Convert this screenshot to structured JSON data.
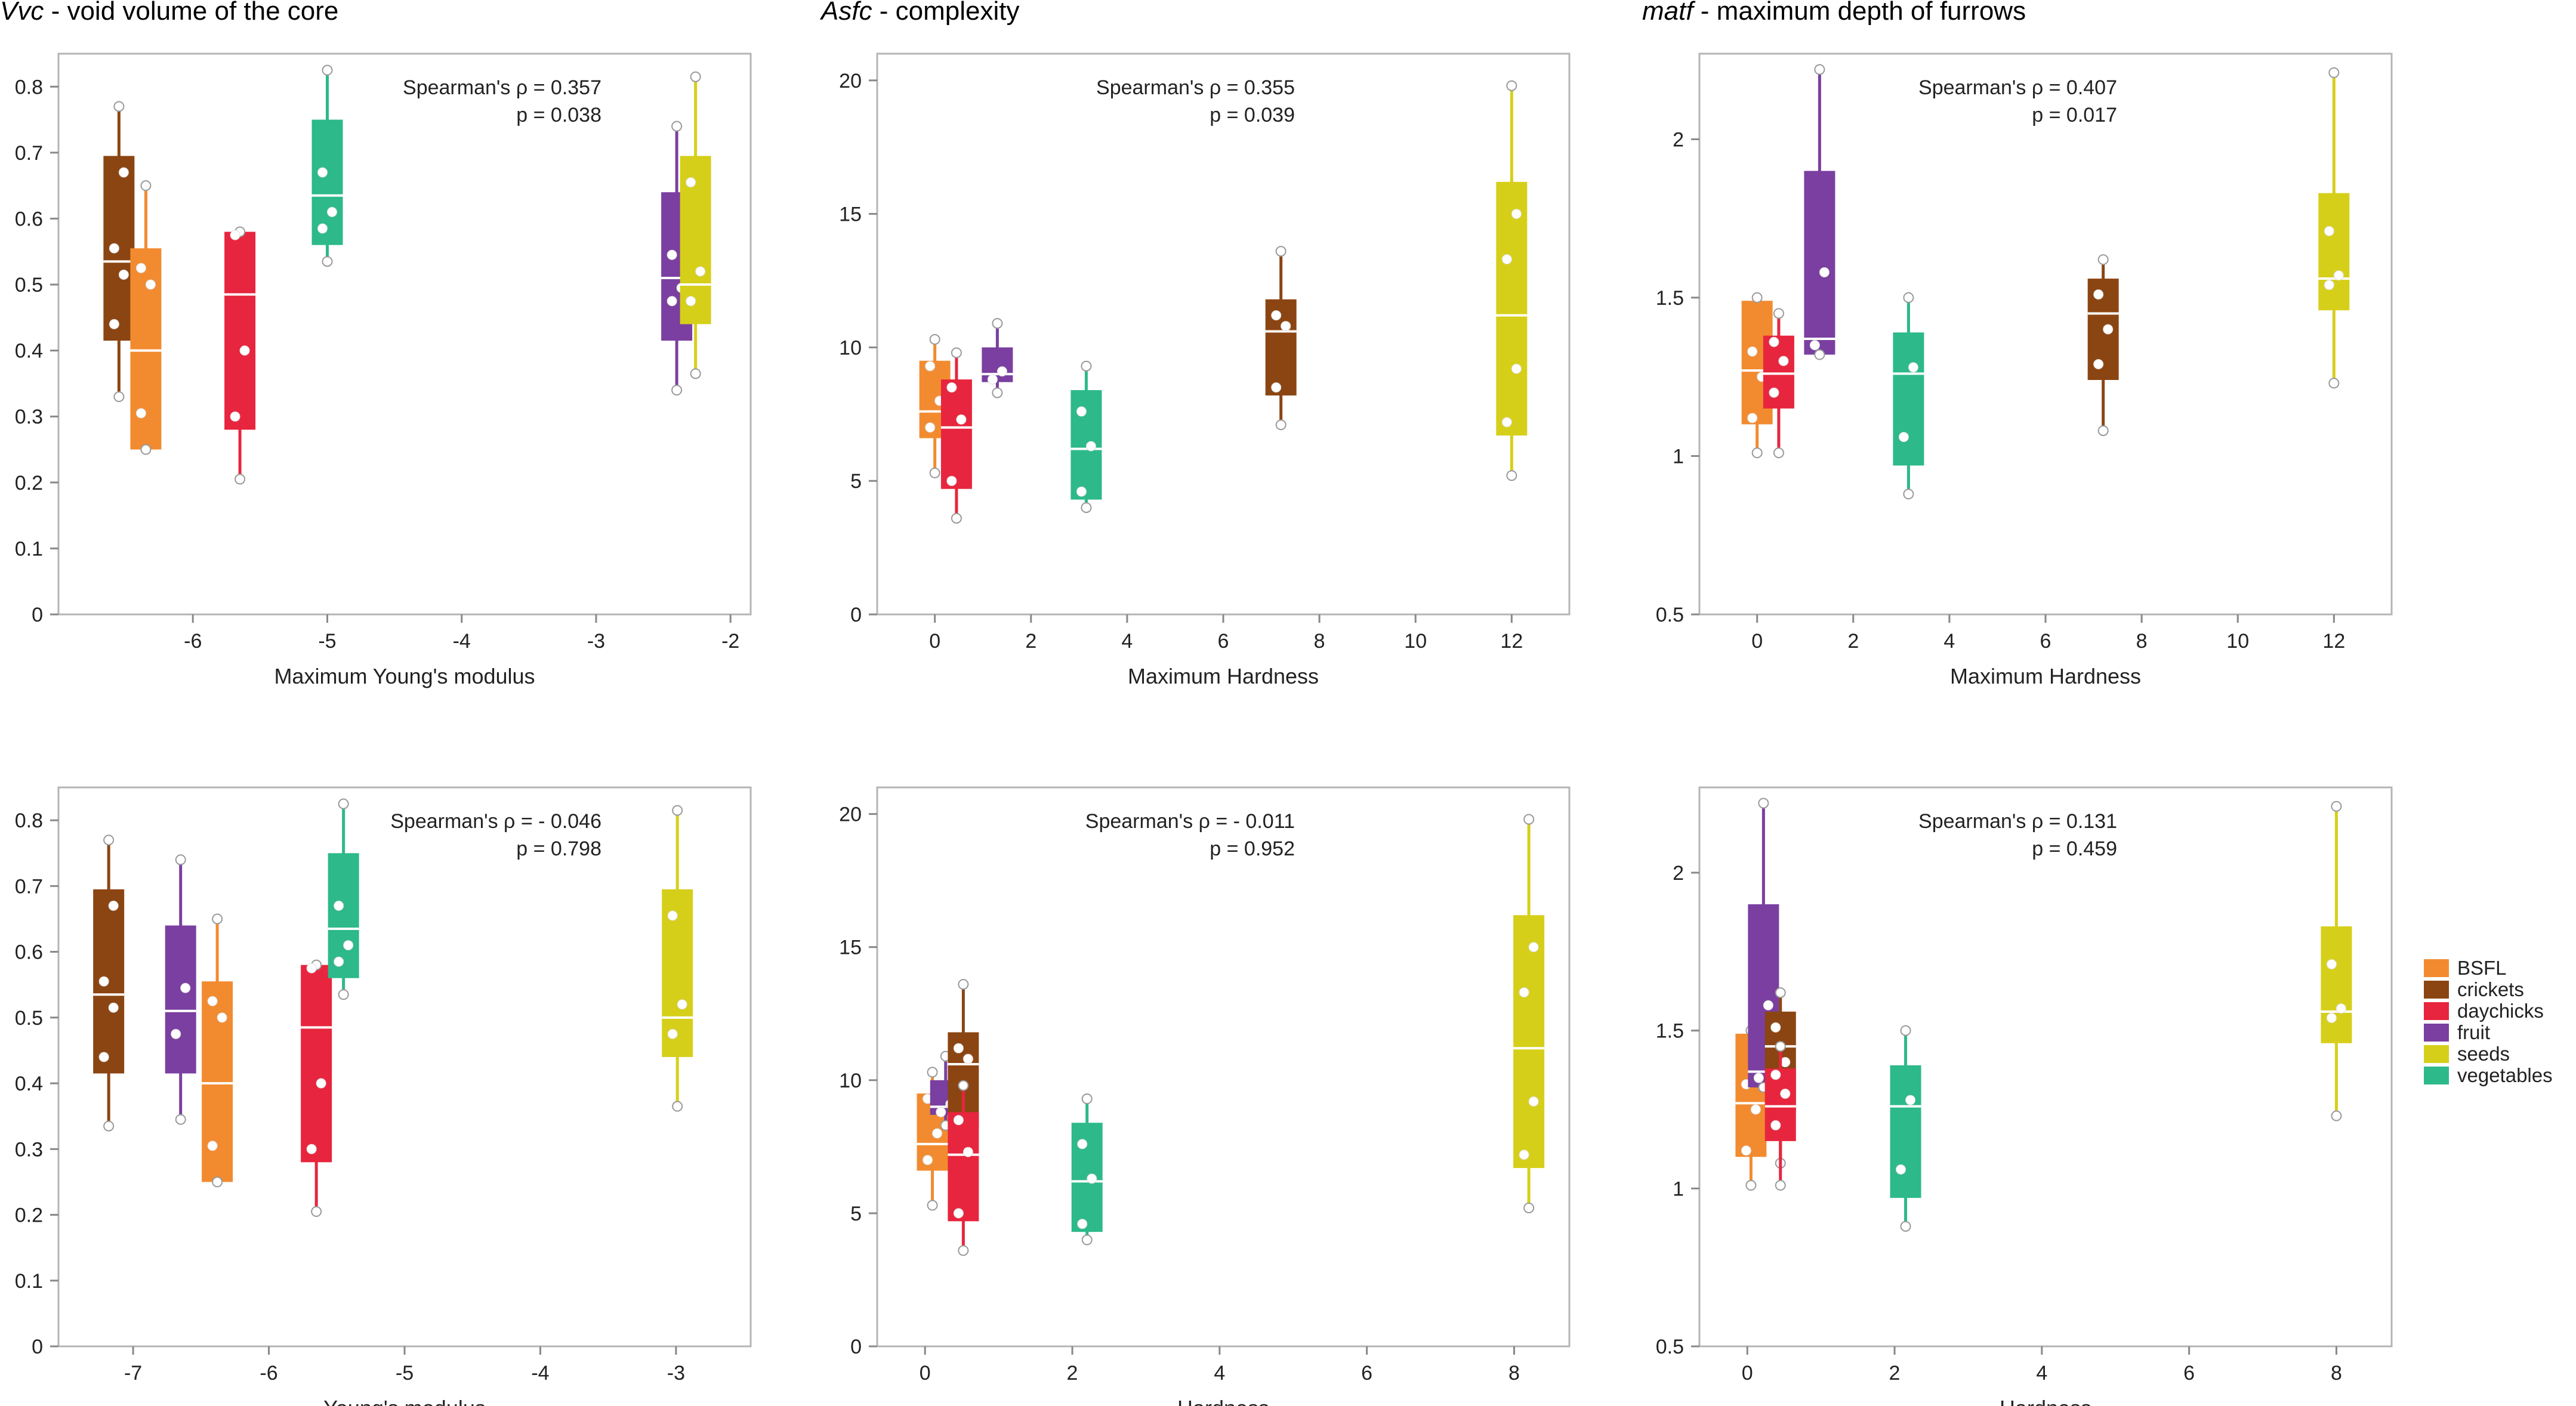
{
  "legend": [
    {
      "label": "BSFL",
      "color": "#F28B30"
    },
    {
      "label": "crickets",
      "color": "#8B4513"
    },
    {
      "label": "daychicks",
      "color": "#E8253E"
    },
    {
      "label": "fruit",
      "color": "#7A3FA0"
    },
    {
      "label": "seeds",
      "color": "#D6CF1A"
    },
    {
      "label": "vegetables",
      "color": "#2DB98A"
    }
  ],
  "chart_data": [
    {
      "type": "box",
      "title_italic": "Vvc",
      "title_rest": " - void volume of the core",
      "xlabel": "Maximum Young's modulus",
      "ylabel": "",
      "xlim": [
        -7.0,
        -1.85
      ],
      "ylim": [
        0,
        0.85
      ],
      "xticks": [
        -6,
        -5,
        -4,
        -3,
        -2
      ],
      "yticks": [
        0,
        0.1,
        0.2,
        0.3,
        0.4,
        0.5,
        0.6,
        0.7,
        0.8
      ],
      "stat_rho": "Spearman's ρ = 0.357",
      "stat_p": "p = 0.038",
      "boxes": [
        {
          "group": "crickets",
          "x": -6.55,
          "min": 0.33,
          "q1": 0.415,
          "median": 0.535,
          "q3": 0.695,
          "max": 0.77,
          "points": [
            0.44,
            0.515,
            0.555,
            0.67
          ]
        },
        {
          "group": "BSFL",
          "x": -6.35,
          "min": 0.25,
          "q1": 0.25,
          "median": 0.4,
          "q3": 0.555,
          "max": 0.65,
          "points": [
            0.305,
            0.5,
            0.525
          ]
        },
        {
          "group": "daychicks",
          "x": -5.65,
          "min": 0.205,
          "q1": 0.28,
          "median": 0.485,
          "q3": 0.58,
          "max": 0.58,
          "points": [
            0.3,
            0.4,
            0.575
          ]
        },
        {
          "group": "vegetables",
          "x": -5.0,
          "min": 0.535,
          "q1": 0.56,
          "median": 0.635,
          "q3": 0.75,
          "max": 0.825,
          "points": [
            0.585,
            0.61,
            0.67
          ]
        },
        {
          "group": "fruit",
          "x": -2.4,
          "min": 0.34,
          "q1": 0.415,
          "median": 0.51,
          "q3": 0.64,
          "max": 0.74,
          "points": [
            0.475,
            0.495,
            0.545
          ]
        },
        {
          "group": "seeds",
          "x": -2.26,
          "min": 0.365,
          "q1": 0.44,
          "median": 0.5,
          "q3": 0.695,
          "max": 0.815,
          "points": [
            0.475,
            0.52,
            0.655
          ]
        }
      ]
    },
    {
      "type": "box",
      "title_italic": "Asfc",
      "title_rest": " - complexity",
      "xlabel": "Maximum Hardness",
      "ylabel": "",
      "xlim": [
        -1.2,
        13.2
      ],
      "ylim": [
        0,
        21
      ],
      "xticks": [
        0,
        2,
        4,
        6,
        8,
        10,
        12
      ],
      "yticks": [
        0,
        5,
        10,
        15,
        20
      ],
      "stat_rho": "Spearman's ρ = 0.355",
      "stat_p": "p = 0.039",
      "boxes": [
        {
          "group": "BSFL",
          "x": 0.0,
          "min": 5.3,
          "q1": 6.6,
          "median": 7.6,
          "q3": 9.5,
          "max": 10.3,
          "points": [
            7.0,
            8.0,
            9.3
          ]
        },
        {
          "group": "daychicks",
          "x": 0.45,
          "min": 3.6,
          "q1": 4.7,
          "median": 7.0,
          "q3": 8.8,
          "max": 9.8,
          "points": [
            5.0,
            7.3,
            8.5
          ]
        },
        {
          "group": "fruit",
          "x": 1.3,
          "min": 8.3,
          "q1": 8.7,
          "median": 9.0,
          "q3": 10.0,
          "max": 10.9,
          "points": [
            8.8,
            9.1
          ]
        },
        {
          "group": "vegetables",
          "x": 3.15,
          "min": 4.0,
          "q1": 4.3,
          "median": 6.2,
          "q3": 8.4,
          "max": 9.3,
          "points": [
            4.6,
            6.3,
            7.6
          ]
        },
        {
          "group": "crickets",
          "x": 7.2,
          "min": 7.1,
          "q1": 8.2,
          "median": 10.6,
          "q3": 11.8,
          "max": 13.6,
          "points": [
            8.5,
            10.8,
            11.2
          ]
        },
        {
          "group": "seeds",
          "x": 12.0,
          "min": 5.2,
          "q1": 6.7,
          "median": 11.2,
          "q3": 16.2,
          "max": 19.8,
          "points": [
            7.2,
            9.2,
            13.3,
            15.0
          ]
        }
      ]
    },
    {
      "type": "box",
      "title_italic": "matf",
      "title_rest": " - maximum depth of furrows",
      "xlabel": "Maximum Hardness",
      "ylabel": "",
      "xlim": [
        -1.2,
        13.2
      ],
      "ylim": [
        0.5,
        2.27
      ],
      "xticks": [
        0,
        2,
        4,
        6,
        8,
        10,
        12
      ],
      "yticks": [
        0.5,
        1.0,
        1.5,
        2.0
      ],
      "stat_rho": "Spearman's ρ = 0.407",
      "stat_p": "p = 0.017",
      "boxes": [
        {
          "group": "BSFL",
          "x": 0.0,
          "min": 1.01,
          "q1": 1.1,
          "median": 1.27,
          "q3": 1.49,
          "max": 1.5,
          "points": [
            1.12,
            1.25,
            1.33
          ]
        },
        {
          "group": "daychicks",
          "x": 0.45,
          "min": 1.01,
          "q1": 1.15,
          "median": 1.26,
          "q3": 1.38,
          "max": 1.45,
          "points": [
            1.2,
            1.3,
            1.36
          ]
        },
        {
          "group": "fruit",
          "x": 1.3,
          "min": 1.32,
          "q1": 1.32,
          "median": 1.37,
          "q3": 1.9,
          "max": 2.22,
          "points": [
            1.35,
            1.58
          ]
        },
        {
          "group": "vegetables",
          "x": 3.15,
          "min": 0.88,
          "q1": 0.97,
          "median": 1.26,
          "q3": 1.39,
          "max": 1.5,
          "points": [
            1.06,
            1.28
          ]
        },
        {
          "group": "crickets",
          "x": 7.2,
          "min": 1.08,
          "q1": 1.24,
          "median": 1.45,
          "q3": 1.56,
          "max": 1.62,
          "points": [
            1.29,
            1.4,
            1.51
          ]
        },
        {
          "group": "seeds",
          "x": 12.0,
          "min": 1.23,
          "q1": 1.46,
          "median": 1.56,
          "q3": 1.83,
          "max": 2.21,
          "points": [
            1.54,
            1.57,
            1.71
          ]
        }
      ]
    },
    {
      "type": "box",
      "title_italic": "",
      "title_rest": "",
      "xlabel": "Young's modulus",
      "ylabel": "",
      "xlim": [
        -7.55,
        -2.45
      ],
      "ylim": [
        0,
        0.85
      ],
      "xticks": [
        -7,
        -6,
        -5,
        -4,
        -3
      ],
      "yticks": [
        0,
        0.1,
        0.2,
        0.3,
        0.4,
        0.5,
        0.6,
        0.7,
        0.8
      ],
      "stat_rho": "Spearman's ρ = - 0.046",
      "stat_p": "p = 0.798",
      "boxes": [
        {
          "group": "crickets",
          "x": -7.18,
          "min": 0.335,
          "q1": 0.415,
          "median": 0.535,
          "q3": 0.695,
          "max": 0.77,
          "points": [
            0.44,
            0.515,
            0.555,
            0.67
          ]
        },
        {
          "group": "fruit",
          "x": -6.65,
          "min": 0.345,
          "q1": 0.415,
          "median": 0.51,
          "q3": 0.64,
          "max": 0.74,
          "points": [
            0.475,
            0.545
          ]
        },
        {
          "group": "BSFL",
          "x": -6.38,
          "min": 0.25,
          "q1": 0.25,
          "median": 0.4,
          "q3": 0.555,
          "max": 0.65,
          "points": [
            0.305,
            0.5,
            0.525
          ]
        },
        {
          "group": "daychicks",
          "x": -5.65,
          "min": 0.205,
          "q1": 0.28,
          "median": 0.485,
          "q3": 0.58,
          "max": 0.58,
          "points": [
            0.3,
            0.4,
            0.575
          ]
        },
        {
          "group": "vegetables",
          "x": -5.45,
          "min": 0.535,
          "q1": 0.56,
          "median": 0.635,
          "q3": 0.75,
          "max": 0.825,
          "points": [
            0.585,
            0.61,
            0.67
          ]
        },
        {
          "group": "seeds",
          "x": -2.99,
          "min": 0.365,
          "q1": 0.44,
          "median": 0.5,
          "q3": 0.695,
          "max": 0.815,
          "points": [
            0.475,
            0.52,
            0.655
          ]
        }
      ]
    },
    {
      "type": "box",
      "title_italic": "",
      "title_rest": "",
      "xlabel": "Hardness",
      "ylabel": "",
      "xlim": [
        -0.65,
        8.75
      ],
      "ylim": [
        0,
        21
      ],
      "xticks": [
        0,
        2,
        4,
        6,
        8
      ],
      "yticks": [
        0,
        5,
        10,
        15,
        20
      ],
      "stat_rho": "Spearman's ρ = - 0.011",
      "stat_p": "p = 0.952",
      "boxes": [
        {
          "group": "BSFL",
          "x": 0.1,
          "min": 5.3,
          "q1": 6.6,
          "median": 7.6,
          "q3": 9.5,
          "max": 10.3,
          "points": [
            7.0,
            8.0,
            9.3
          ]
        },
        {
          "group": "fruit",
          "x": 0.28,
          "min": 8.3,
          "q1": 8.7,
          "median": 9.0,
          "q3": 10.0,
          "max": 10.9,
          "points": [
            8.8,
            9.1
          ]
        },
        {
          "group": "crickets",
          "x": 0.52,
          "min": 7.1,
          "q1": 8.2,
          "median": 10.6,
          "q3": 11.8,
          "max": 13.6,
          "points": [
            8.5,
            10.8,
            11.2
          ]
        },
        {
          "group": "daychicks",
          "x": 0.52,
          "min": 3.6,
          "q1": 4.7,
          "median": 7.2,
          "q3": 8.8,
          "max": 9.8,
          "points": [
            5.0,
            7.3,
            8.5
          ]
        },
        {
          "group": "vegetables",
          "x": 2.2,
          "min": 4.0,
          "q1": 4.3,
          "median": 6.2,
          "q3": 8.4,
          "max": 9.3,
          "points": [
            4.6,
            6.3,
            7.6
          ]
        },
        {
          "group": "seeds",
          "x": 8.2,
          "min": 5.2,
          "q1": 6.7,
          "median": 11.2,
          "q3": 16.2,
          "max": 19.8,
          "points": [
            7.2,
            9.2,
            13.3,
            15.0
          ]
        }
      ]
    },
    {
      "type": "box",
      "title_italic": "",
      "title_rest": "",
      "xlabel": "Hardness",
      "ylabel": "",
      "xlim": [
        -0.65,
        8.75
      ],
      "ylim": [
        0.5,
        2.27
      ],
      "xticks": [
        0,
        2,
        4,
        6,
        8
      ],
      "yticks": [
        0.5,
        1.0,
        1.5,
        2.0
      ],
      "stat_rho": "Spearman's ρ = 0.131",
      "stat_p": "p = 0.459",
      "boxes": [
        {
          "group": "BSFL",
          "x": 0.05,
          "min": 1.01,
          "q1": 1.1,
          "median": 1.27,
          "q3": 1.49,
          "max": 1.5,
          "points": [
            1.12,
            1.25,
            1.33
          ]
        },
        {
          "group": "fruit",
          "x": 0.22,
          "min": 1.32,
          "q1": 1.32,
          "median": 1.37,
          "q3": 1.9,
          "max": 2.22,
          "points": [
            1.35,
            1.58
          ]
        },
        {
          "group": "crickets",
          "x": 0.45,
          "min": 1.08,
          "q1": 1.24,
          "median": 1.45,
          "q3": 1.56,
          "max": 1.62,
          "points": [
            1.29,
            1.4,
            1.51
          ]
        },
        {
          "group": "daychicks",
          "x": 0.45,
          "min": 1.01,
          "q1": 1.15,
          "median": 1.26,
          "q3": 1.38,
          "max": 1.45,
          "points": [
            1.2,
            1.3,
            1.36
          ]
        },
        {
          "group": "vegetables",
          "x": 2.15,
          "min": 0.88,
          "q1": 0.97,
          "median": 1.26,
          "q3": 1.39,
          "max": 1.5,
          "points": [
            1.06,
            1.28
          ]
        },
        {
          "group": "seeds",
          "x": 8.0,
          "min": 1.23,
          "q1": 1.46,
          "median": 1.56,
          "q3": 1.83,
          "max": 2.21,
          "points": [
            1.54,
            1.57,
            1.71
          ]
        }
      ]
    }
  ]
}
